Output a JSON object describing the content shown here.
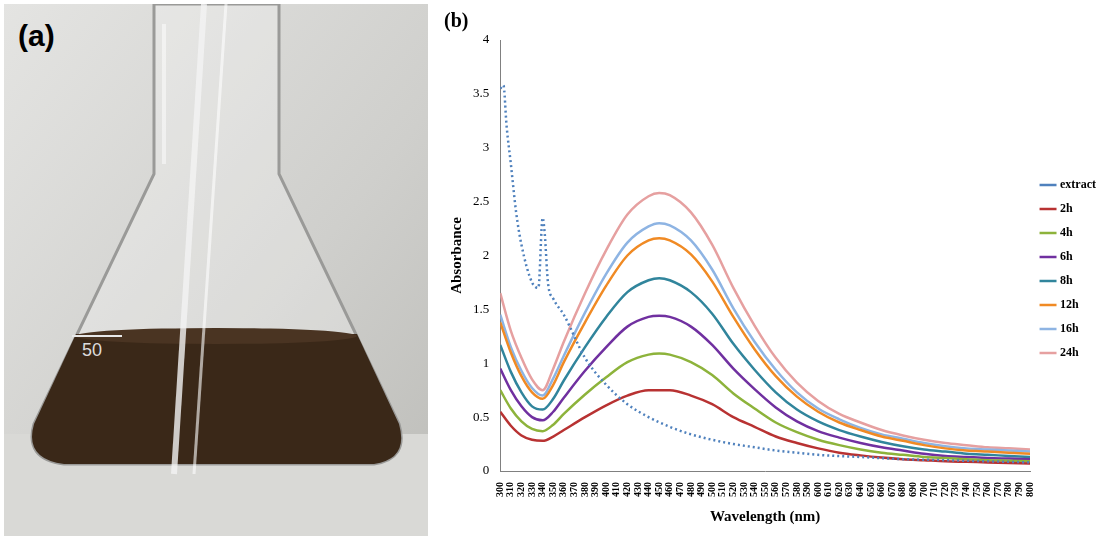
{
  "photo": {
    "label": "(a)",
    "flask_mark": "50"
  },
  "chart_data": {
    "type": "line",
    "label": "(b)",
    "x_label": "Wavelength (nm)",
    "y_label": "Absorbance",
    "x": [
      300,
      310,
      320,
      330,
      340,
      350,
      360,
      380,
      400,
      420,
      440,
      450,
      460,
      480,
      500,
      520,
      540,
      560,
      580,
      600,
      620,
      640,
      660,
      680,
      700,
      720,
      740,
      760,
      780,
      800
    ],
    "xlim": [
      300,
      800
    ],
    "xticks": [
      300,
      310,
      320,
      330,
      340,
      350,
      360,
      370,
      380,
      390,
      400,
      410,
      420,
      430,
      440,
      450,
      460,
      470,
      480,
      490,
      500,
      510,
      520,
      530,
      540,
      550,
      560,
      570,
      580,
      590,
      600,
      610,
      620,
      630,
      640,
      650,
      660,
      670,
      680,
      690,
      700,
      710,
      720,
      730,
      740,
      750,
      760,
      770,
      780,
      790,
      800
    ],
    "ylim": [
      0,
      4
    ],
    "yticks": [
      0,
      0.5,
      1,
      1.5,
      2,
      2.5,
      3,
      3.5,
      4
    ],
    "grid": false,
    "legend": "right",
    "series": [
      {
        "name": "extract",
        "color": "#4f81bd",
        "line_style": "dotted",
        "x": [
          300,
          303,
          306,
          310,
          315,
          320,
          330,
          336,
          340,
          342,
          345,
          350,
          360,
          380,
          400,
          420,
          440,
          460,
          480,
          500,
          520,
          540,
          560,
          580,
          600,
          640,
          680,
          720,
          760,
          800
        ],
        "values": [
          3.55,
          3.58,
          3.2,
          2.85,
          2.4,
          2.1,
          1.75,
          1.7,
          2.35,
          2.2,
          1.75,
          1.6,
          1.45,
          1.05,
          0.8,
          0.62,
          0.5,
          0.41,
          0.34,
          0.29,
          0.25,
          0.22,
          0.19,
          0.17,
          0.15,
          0.13,
          0.11,
          0.1,
          0.09,
          0.08
        ]
      },
      {
        "name": "2h",
        "color": "#b83232",
        "line_style": "solid",
        "values": [
          0.55,
          0.42,
          0.33,
          0.29,
          0.28,
          0.32,
          0.38,
          0.5,
          0.61,
          0.7,
          0.75,
          0.75,
          0.75,
          0.7,
          0.62,
          0.5,
          0.41,
          0.32,
          0.26,
          0.21,
          0.17,
          0.145,
          0.125,
          0.11,
          0.1,
          0.09,
          0.085,
          0.08,
          0.075,
          0.07
        ]
      },
      {
        "name": "4h",
        "color": "#8db33b",
        "line_style": "solid",
        "values": [
          0.75,
          0.58,
          0.46,
          0.39,
          0.37,
          0.43,
          0.53,
          0.71,
          0.87,
          1.01,
          1.08,
          1.09,
          1.08,
          1.01,
          0.89,
          0.72,
          0.58,
          0.45,
          0.36,
          0.29,
          0.24,
          0.2,
          0.17,
          0.15,
          0.13,
          0.12,
          0.11,
          0.1,
          0.095,
          0.09
        ]
      },
      {
        "name": "6h",
        "color": "#7030a0",
        "line_style": "solid",
        "values": [
          0.95,
          0.75,
          0.6,
          0.5,
          0.47,
          0.55,
          0.68,
          0.93,
          1.15,
          1.34,
          1.43,
          1.44,
          1.43,
          1.34,
          1.17,
          0.95,
          0.76,
          0.59,
          0.46,
          0.37,
          0.31,
          0.26,
          0.22,
          0.19,
          0.16,
          0.14,
          0.13,
          0.12,
          0.115,
          0.11
        ]
      },
      {
        "name": "8h",
        "color": "#31859c",
        "line_style": "solid",
        "values": [
          1.17,
          0.92,
          0.73,
          0.6,
          0.57,
          0.67,
          0.84,
          1.15,
          1.43,
          1.66,
          1.77,
          1.79,
          1.77,
          1.66,
          1.46,
          1.18,
          0.94,
          0.73,
          0.57,
          0.46,
          0.38,
          0.32,
          0.27,
          0.23,
          0.2,
          0.18,
          0.16,
          0.15,
          0.14,
          0.13
        ]
      },
      {
        "name": "12h",
        "color": "#f08a24",
        "line_style": "solid",
        "values": [
          1.38,
          1.1,
          0.88,
          0.73,
          0.67,
          0.8,
          1.01,
          1.38,
          1.72,
          2.0,
          2.14,
          2.16,
          2.14,
          2.01,
          1.76,
          1.43,
          1.13,
          0.88,
          0.69,
          0.55,
          0.45,
          0.38,
          0.32,
          0.28,
          0.24,
          0.21,
          0.19,
          0.18,
          0.17,
          0.16
        ]
      },
      {
        "name": "16h",
        "color": "#8eb4e3",
        "line_style": "solid",
        "values": [
          1.45,
          1.15,
          0.93,
          0.77,
          0.7,
          0.86,
          1.07,
          1.47,
          1.83,
          2.12,
          2.27,
          2.3,
          2.28,
          2.14,
          1.87,
          1.51,
          1.2,
          0.94,
          0.73,
          0.58,
          0.48,
          0.4,
          0.34,
          0.3,
          0.26,
          0.23,
          0.21,
          0.2,
          0.19,
          0.18
        ]
      },
      {
        "name": "24h",
        "color": "#e6a0a0",
        "line_style": "solid",
        "values": [
          1.65,
          1.3,
          1.05,
          0.85,
          0.75,
          0.95,
          1.2,
          1.65,
          2.05,
          2.38,
          2.55,
          2.58,
          2.56,
          2.4,
          2.1,
          1.7,
          1.35,
          1.05,
          0.82,
          0.65,
          0.53,
          0.45,
          0.38,
          0.33,
          0.29,
          0.26,
          0.24,
          0.22,
          0.21,
          0.2
        ]
      }
    ]
  }
}
